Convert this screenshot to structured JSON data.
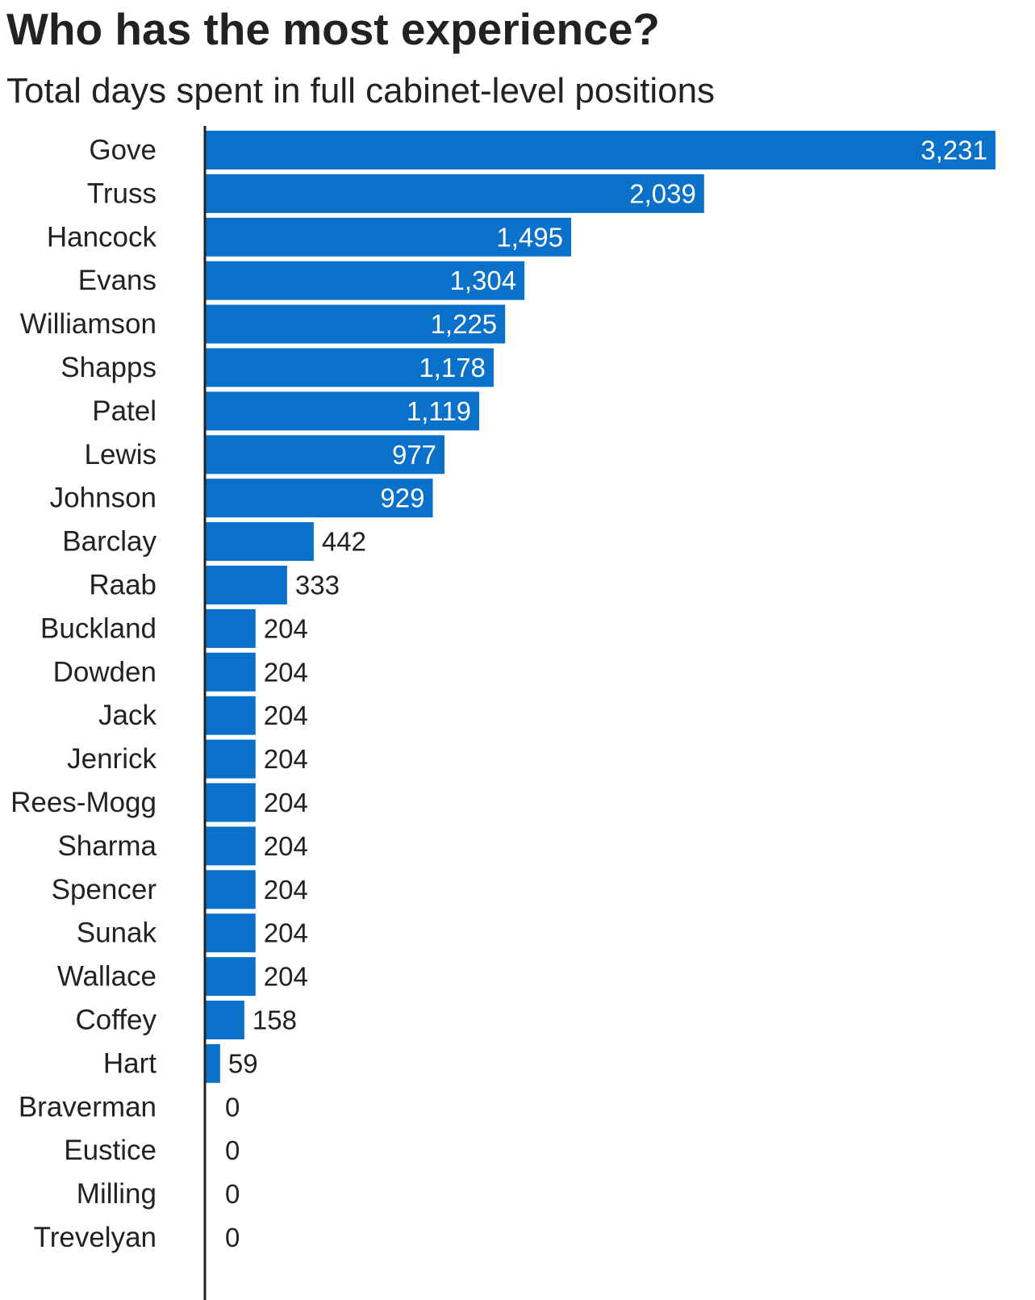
{
  "chart_data": {
    "type": "bar",
    "orientation": "horizontal",
    "title": "Who has the most experience?",
    "subtitle": "Total days spent in full cabinet-level positions",
    "categories": [
      "Gove",
      "Truss",
      "Hancock",
      "Evans",
      "Williamson",
      "Shapps",
      "Patel",
      "Lewis",
      "Johnson",
      "Barclay",
      "Raab",
      "Buckland",
      "Dowden",
      "Jack",
      "Jenrick",
      "Rees-Mogg",
      "Sharma",
      "Spencer",
      "Sunak",
      "Wallace",
      "Coffey",
      "Hart",
      "Braverman",
      "Eustice",
      "Milling",
      "Trevelyan"
    ],
    "values": [
      3231,
      2039,
      1495,
      1304,
      1225,
      1178,
      1119,
      977,
      929,
      442,
      333,
      204,
      204,
      204,
      204,
      204,
      204,
      204,
      204,
      204,
      158,
      59,
      0,
      0,
      0,
      0
    ],
    "value_labels": [
      "3,231",
      "2,039",
      "1,495",
      "1,304",
      "1,225",
      "1,178",
      "1,119",
      "977",
      "929",
      "442",
      "333",
      "204",
      "204",
      "204",
      "204",
      "204",
      "204",
      "204",
      "204",
      "204",
      "158",
      "59",
      "0",
      "0",
      "0",
      "0"
    ],
    "xlim": [
      0,
      3231
    ],
    "grid": false,
    "legend": "none",
    "colors": {
      "bar": "#0a71cb",
      "axis": "#222222",
      "label_inside": "#ffffff",
      "label_outside": "#222222"
    }
  }
}
